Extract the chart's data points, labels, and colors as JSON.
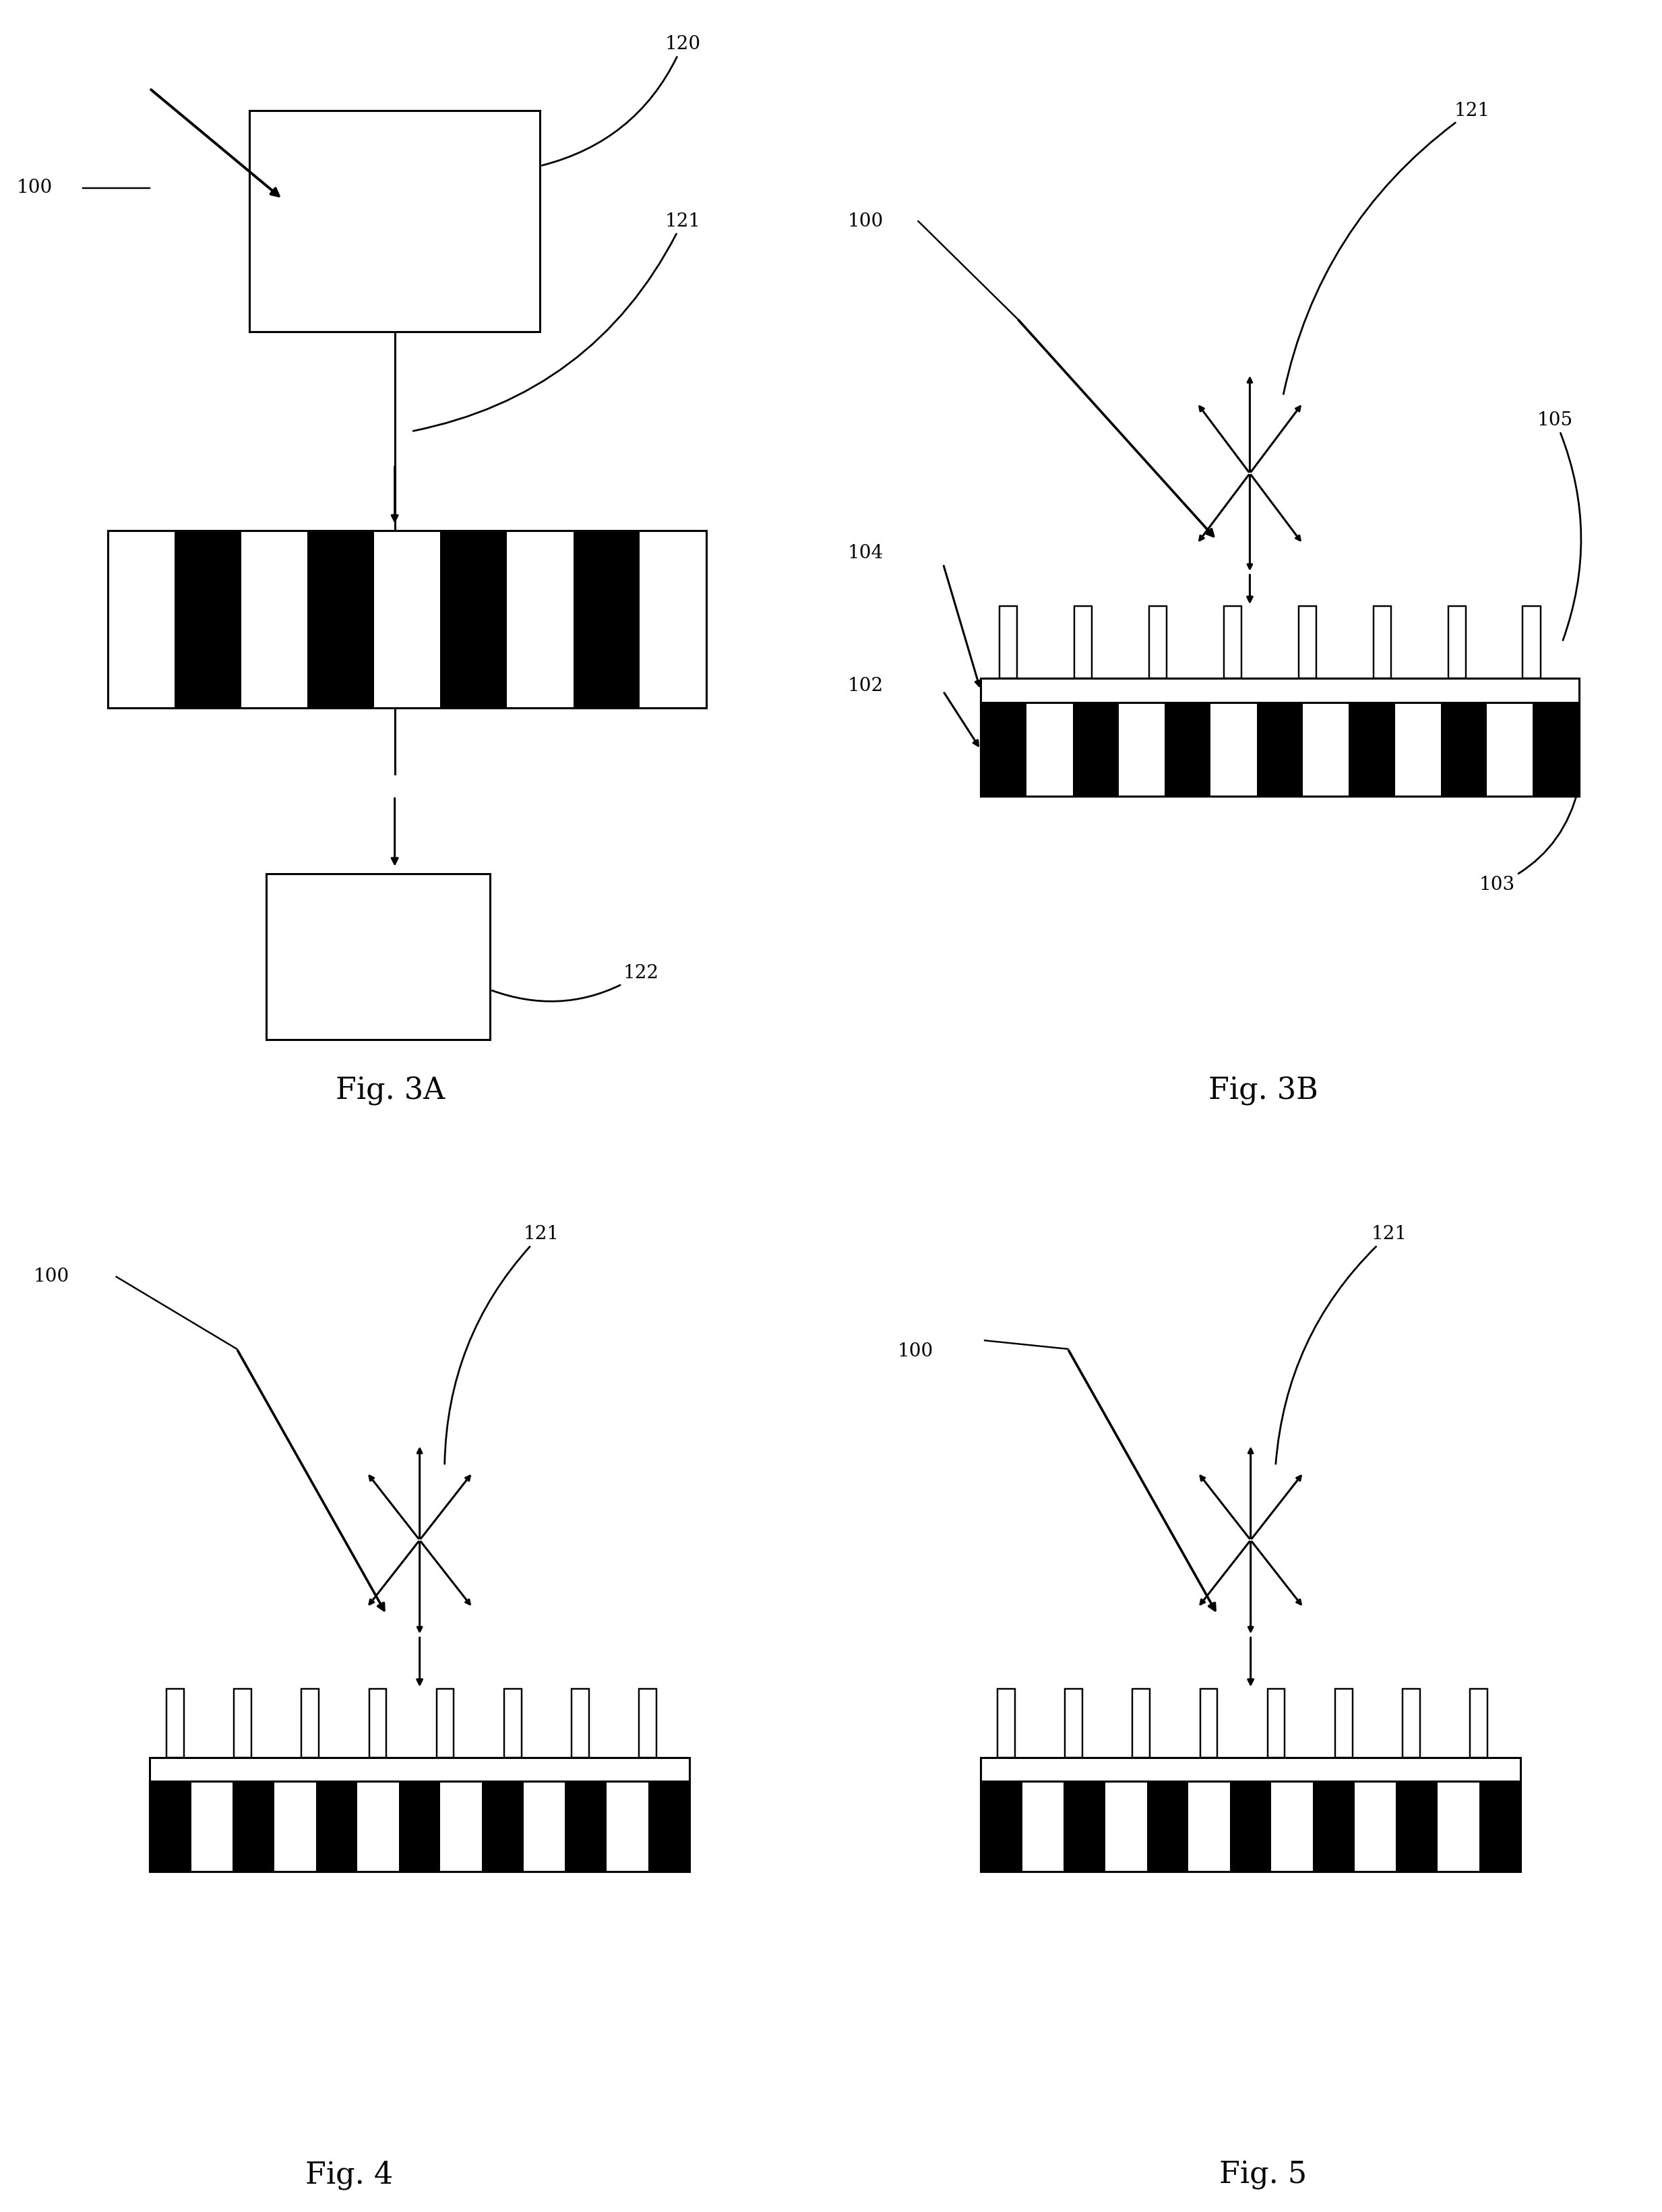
{
  "fig_width": 24.66,
  "fig_height": 32.81,
  "bg_color": "#ffffff",
  "line_color": "#000000",
  "fig3a_label": "Fig. 3A",
  "fig3b_label": "Fig. 3B",
  "fig4_label": "Fig. 4",
  "fig5_label": "Fig. 5",
  "annot_fontsize": 20,
  "caption_fontsize": 32,
  "lw": 2.2
}
